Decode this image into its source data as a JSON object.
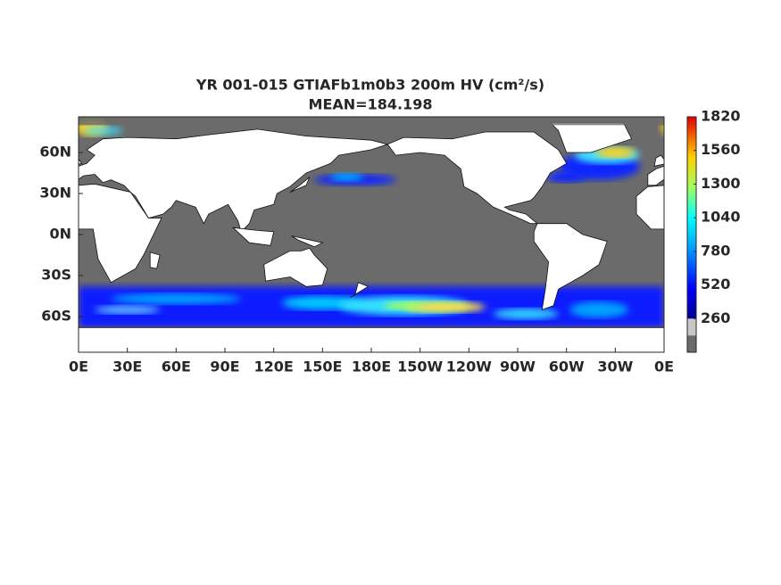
{
  "map": {
    "title": "YR 001-015 GTIAFb1m0b3 200m HV (cm²/s)",
    "subtitle": "MEAN=184.198",
    "xticks": [
      "0E",
      "30E",
      "60E",
      "90E",
      "120E",
      "150E",
      "180E",
      "150W",
      "120W",
      "90W",
      "60W",
      "30W",
      "0E"
    ],
    "yticks": [
      "60N",
      "30N",
      "0N",
      "30S",
      "60S"
    ],
    "colorbar": {
      "lim": [
        0,
        1820
      ],
      "ticks": [
        260,
        520,
        780,
        1040,
        1300,
        1560,
        1820
      ]
    }
  }
}
